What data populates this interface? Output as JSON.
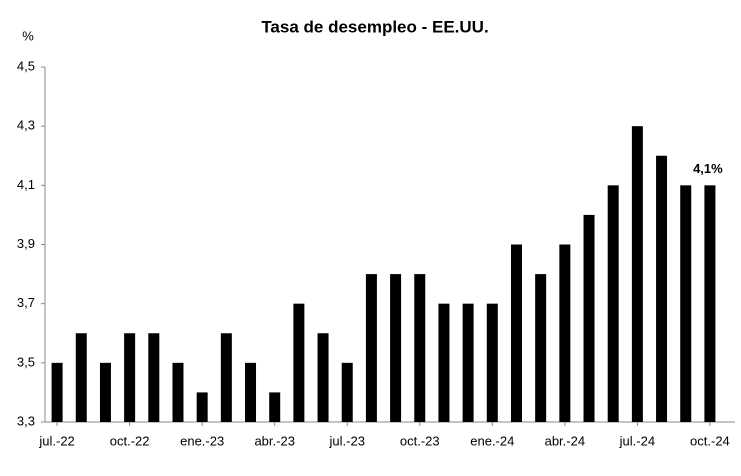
{
  "chart_data": {
    "type": "bar",
    "title": "Tasa de desempleo - EE.UU.",
    "y_label": "%",
    "categories": [
      "jul.-22",
      null,
      null,
      "oct.-22",
      null,
      null,
      "ene.-23",
      null,
      null,
      "abr.-23",
      null,
      null,
      "jul.-23",
      null,
      null,
      "oct.-23",
      null,
      null,
      "ene.-24",
      null,
      null,
      "abr.-24",
      null,
      null,
      "jul.-24",
      null,
      null,
      "oct.-24"
    ],
    "values": [
      3.5,
      3.6,
      3.5,
      3.6,
      3.6,
      3.5,
      3.4,
      3.6,
      3.5,
      3.4,
      3.7,
      3.6,
      3.5,
      3.8,
      3.8,
      3.8,
      3.7,
      3.7,
      3.7,
      3.9,
      3.8,
      3.9,
      4.0,
      4.1,
      4.3,
      4.2,
      4.1,
      4.1
    ],
    "value_labels": [
      null,
      null,
      null,
      null,
      null,
      null,
      null,
      null,
      null,
      null,
      null,
      null,
      null,
      null,
      null,
      null,
      null,
      null,
      null,
      null,
      null,
      null,
      null,
      null,
      null,
      null,
      null,
      "4,1%"
    ],
    "color": "#000000",
    "ylim": [
      3.3,
      4.5
    ],
    "yticks": [
      {
        "value": 3.3,
        "label": "3,3"
      },
      {
        "value": 3.5,
        "label": "3,5"
      },
      {
        "value": 3.7,
        "label": "3,7"
      },
      {
        "value": 3.9,
        "label": "3,9"
      },
      {
        "value": 4.1,
        "label": "4,1"
      },
      {
        "value": 4.3,
        "label": "4,3"
      },
      {
        "value": 4.5,
        "label": "4,5"
      }
    ],
    "grid": false
  }
}
